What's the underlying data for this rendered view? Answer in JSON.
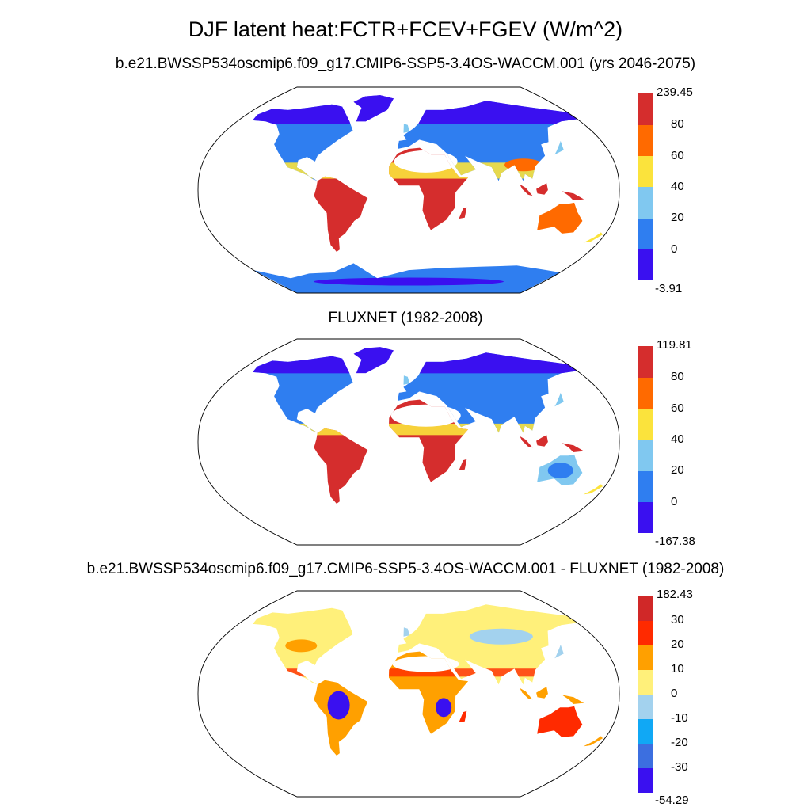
{
  "title": "DJF latent heat:FCTR+FCEV+FGEV (W/m^2)",
  "panels": [
    {
      "subtitle": "b.e21.BWSSP534oscmip6.f09_g17.CMIP6-SSP5-3.4OS-WACCM.001 (yrs 2046-2075)",
      "colorbar": {
        "colors": [
          "#3a10f0",
          "#2f7ef0",
          "#80c8f0",
          "#fbe33c",
          "#ff6a00",
          "#d52d2d"
        ],
        "labels": [
          "-3.91",
          "0",
          "20",
          "40",
          "60",
          "80",
          "239.45"
        ]
      }
    },
    {
      "subtitle": "FLUXNET (1982-2008)",
      "colorbar": {
        "colors": [
          "#3a10f0",
          "#2f7ef0",
          "#80c8f0",
          "#fbe33c",
          "#ff6a00",
          "#d52d2d"
        ],
        "labels": [
          "-167.38",
          "0",
          "20",
          "40",
          "60",
          "80",
          "119.81"
        ]
      }
    },
    {
      "subtitle": "b.e21.BWSSP534oscmip6.f09_g17.CMIP6-SSP5-3.4OS-WACCM.001 - FLUXNET (1982-2008)",
      "colorbar": {
        "colors": [
          "#3a10f0",
          "#3c6fe0",
          "#10a8f5",
          "#a3d2ee",
          "#fff07a",
          "#ffa000",
          "#ff2a00",
          "#d02828"
        ],
        "labels": [
          "-54.29",
          "-30",
          "-20",
          "-10",
          "0",
          "10",
          "20",
          "30",
          "182.43"
        ]
      }
    }
  ]
}
